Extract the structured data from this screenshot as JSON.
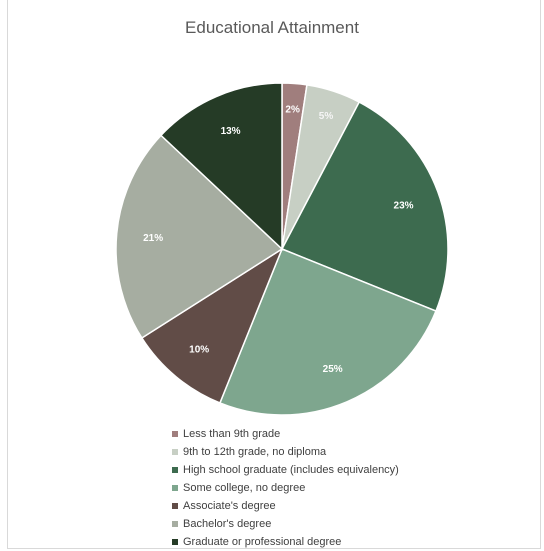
{
  "chart_data": {
    "type": "pie",
    "title": "Educational Attainment",
    "categories": [
      "Less than 9th grade",
      "9th to 12th grade, no diploma",
      "High school graduate (includes equivalency)",
      "Some college, no degree",
      "Associate's degree",
      "Bachelor's degree",
      "Graduate or professional degree"
    ],
    "values": [
      2.4,
      5.3,
      23.4,
      25,
      9.9,
      21,
      13
    ],
    "data_labels": [
      "2%",
      "5%",
      "23%",
      "25%",
      "10%",
      "21%",
      "13%"
    ],
    "colors": [
      "#a07e7d",
      "#c7cfc4",
      "#3d6b4f",
      "#7ea68e",
      "#614c47",
      "#a6ada1",
      "#253b26"
    ],
    "legend_position": "bottom"
  }
}
